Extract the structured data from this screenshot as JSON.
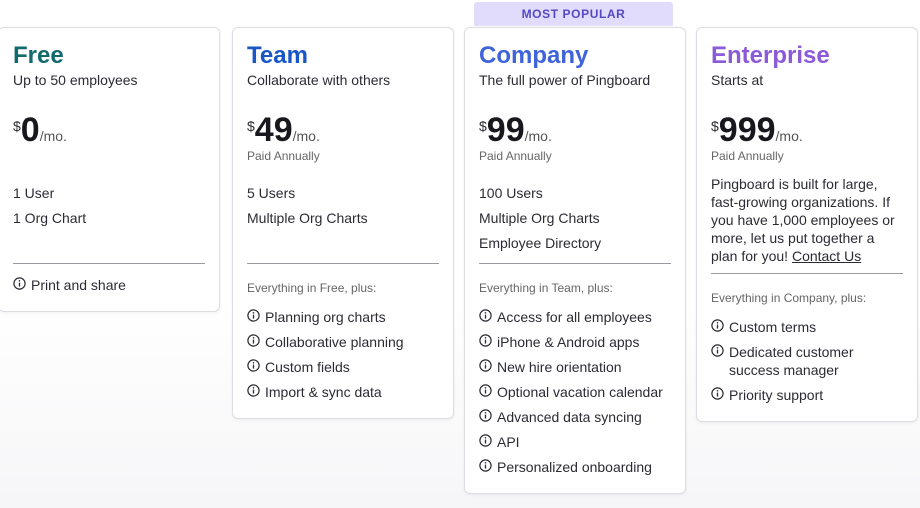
{
  "badge": "MOST POPULAR",
  "plans": [
    {
      "name": "Free",
      "subtitle": "Up to 50 employees",
      "currency": "$",
      "amount": "0",
      "period": "/mo.",
      "limits": [
        "1 User",
        "1 Org Chart"
      ],
      "features": [
        "Print and share"
      ]
    },
    {
      "name": "Team",
      "subtitle": "Collaborate with others",
      "currency": "$",
      "amount": "49",
      "period": "/mo.",
      "billing": "Paid Annually",
      "limits": [
        "5 Users",
        "Multiple Org Charts"
      ],
      "features_heading": "Everything in Free, plus:",
      "features": [
        "Planning org charts",
        "Collaborative planning",
        "Custom fields",
        "Import & sync data"
      ]
    },
    {
      "name": "Company",
      "subtitle": "The full power of Pingboard",
      "currency": "$",
      "amount": "99",
      "period": "/mo.",
      "billing": "Paid Annually",
      "limits": [
        "100 Users",
        "Multiple Org Charts",
        "Employee Directory"
      ],
      "features_heading": "Everything in Team, plus:",
      "features": [
        "Access for all employees",
        "iPhone & Android apps",
        "New hire orientation",
        "Optional vacation calendar",
        "Advanced data syncing",
        "API",
        "Personalized onboarding"
      ]
    },
    {
      "name": "Enterprise",
      "subtitle": "Starts at",
      "currency": "$",
      "amount": "999",
      "period": "/mo.",
      "billing": "Paid Annually",
      "description": "Pingboard is built for large, fast-growing organizations. If you have 1,000 employees or more, let us put together a plan for you!",
      "link": "Contact Us",
      "features_heading": "Everything in Company, plus:",
      "features": [
        "Custom terms",
        "Dedicated customer success manager",
        "Priority support"
      ]
    }
  ]
}
